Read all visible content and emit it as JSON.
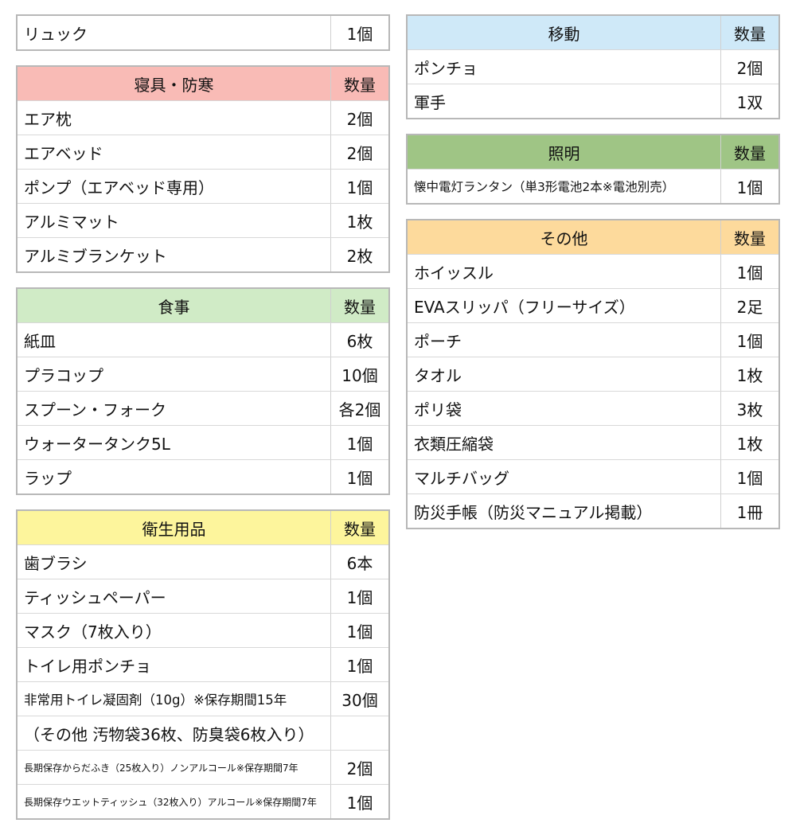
{
  "left": [
    {
      "rows": [
        [
          "リュック",
          "1個"
        ]
      ]
    },
    {
      "header": {
        "title": "寝具・防寒",
        "qty": "数量",
        "color": "#f9bbb6"
      },
      "rows": [
        [
          "エア枕",
          "2個"
        ],
        [
          "エアベッド",
          "2個"
        ],
        [
          "ポンプ（エアベッド専用）",
          "1個"
        ],
        [
          "アルミマット",
          "1枚"
        ],
        [
          "アルミブランケット",
          "2枚"
        ]
      ]
    },
    {
      "header": {
        "title": "食事",
        "qty": "数量",
        "color": "#d0ebc6"
      },
      "rows": [
        [
          "紙皿",
          "6枚"
        ],
        [
          "プラコップ",
          "10個"
        ],
        [
          "スプーン・フォーク",
          "各2個"
        ],
        [
          "ウォータータンク5L",
          "1個"
        ],
        [
          "ラップ",
          "1個"
        ]
      ]
    },
    {
      "header": {
        "title": "衛生用品",
        "qty": "数量",
        "color": "#fdf59c"
      },
      "rows": [
        [
          "歯ブラシ",
          "6本"
        ],
        [
          "ティッシュペーパー",
          "1個"
        ],
        [
          "マスク（7枚入り）",
          "1個"
        ],
        [
          "トイレ用ポンチョ",
          "1個"
        ],
        [
          "非常用トイレ凝固剤（10g）※保存期間15年",
          "30個"
        ],
        [
          "（その他 汚物袋36枚、防臭袋6枚入り）"
        ],
        [
          "長期保存からだふき（25枚入り）ノンアルコール※保存期間7年",
          "2個"
        ],
        [
          "長期保存ウエットティッシュ（32枚入り）アルコール※保存期間7年",
          "1個"
        ]
      ]
    }
  ],
  "right": [
    {
      "header": {
        "title": "移動",
        "qty": "数量",
        "color": "#cfe9f8"
      },
      "rows": [
        [
          "ポンチョ",
          "2個"
        ],
        [
          "軍手",
          "1双"
        ]
      ]
    },
    {
      "header": {
        "title": "照明",
        "qty": "数量",
        "color": "#9fc585"
      },
      "rows": [
        [
          "懐中電灯ランタン（単3形電池2本※電池別売）",
          "1個"
        ]
      ]
    },
    {
      "header": {
        "title": "その他",
        "qty": "数量",
        "color": "#fdda9c"
      },
      "rows": [
        [
          "ホイッスル",
          "1個"
        ],
        [
          "EVAスリッパ（フリーサイズ）",
          "2足"
        ],
        [
          "ポーチ",
          "1個"
        ],
        [
          "タオル",
          "1枚"
        ],
        [
          "ポリ袋",
          "3枚"
        ],
        [
          "衣類圧縮袋",
          "1枚"
        ],
        [
          "マルチバッグ",
          "1個"
        ],
        [
          "防災手帳（防災マニュアル掲載）",
          "1冊"
        ]
      ]
    }
  ]
}
